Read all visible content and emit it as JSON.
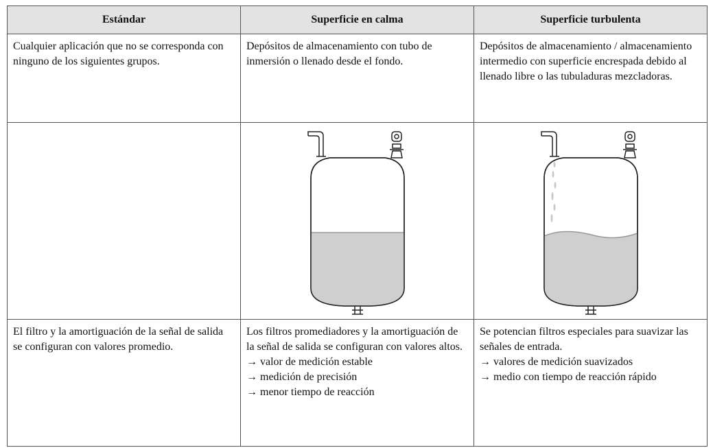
{
  "table": {
    "header": [
      "Estándar",
      "Superficie en calma",
      "Superficie turbulenta"
    ],
    "rows": [
      [
        "Cualquier aplicación que no se corresponda con ninguno de los siguientes grupos.",
        "Depósitos de almacenamiento con tubo de inmersión o llenado desde el fondo.",
        "Depósitos de almacenamiento / almacenamiento intermedio con superficie encrespada debido al llenado libre o las tubuladuras mezcladoras."
      ],
      [
        [
          "El filtro y la amortiguación de la señal de salida se configuran con valores promedio."
        ],
        [
          "Los filtros promediadores y la amortiguación de la señal de salida se configuran con valores altos.",
          "→ valor de medición estable",
          "→ medición de precisión",
          "→ menor tiempo de reacción"
        ],
        [
          "Se potencian filtros especiales para suavizar las señales de entrada.",
          "→ valores de medición suavizados",
          "→ medio con tiempo de reacción rápido"
        ]
      ]
    ]
  }
}
